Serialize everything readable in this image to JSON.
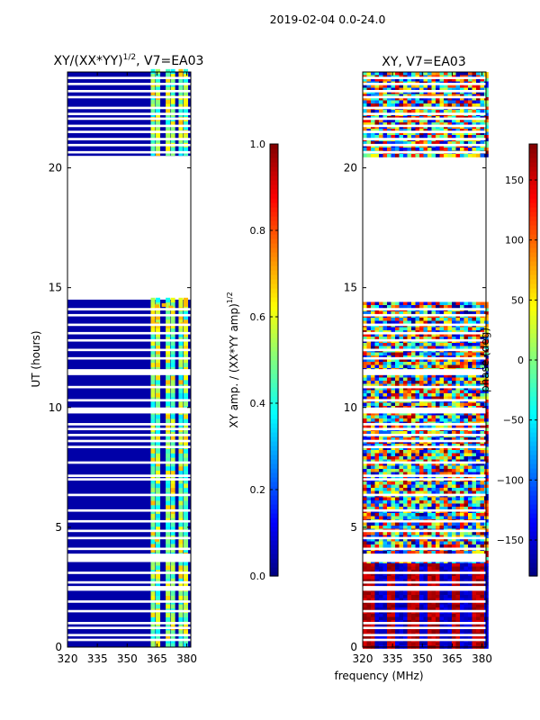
{
  "figure": {
    "suptitle": "2019-02-04 0.0-24.0",
    "common_xlabel": "frequency (MHz)"
  },
  "chart_data": [
    {
      "type": "heatmap",
      "title": "XY/(XX*YY)",
      "title_superscript": "1/2",
      "title_suffix": ", V7=EA03",
      "xlabel": "",
      "ylabel": "UT (hours)",
      "xlim": [
        320,
        382
      ],
      "ylim": [
        0,
        24
      ],
      "xticks": [
        320,
        335,
        350,
        365,
        380
      ],
      "yticks": [
        0,
        5,
        10,
        15,
        20
      ],
      "data_gap_hours": [
        14.5,
        20.5
      ],
      "bright_channels_mhz": [
        363,
        365.5,
        370.5,
        373,
        377,
        379.5
      ],
      "colorbar": {
        "label": "XY amp. / (XX*YY amp)",
        "label_superscript": "1/2",
        "range": [
          0.0,
          1.0
        ],
        "ticks": [
          "0.0",
          "0.2",
          "0.4",
          "0.6",
          "0.8",
          "1.0"
        ],
        "colormap": "jet"
      }
    },
    {
      "type": "heatmap",
      "title": "XY, V7=EA03",
      "xlabel": "",
      "ylabel": "",
      "xlim": [
        320,
        382
      ],
      "ylim": [
        0,
        24
      ],
      "xticks": [
        320,
        335,
        350,
        365,
        380
      ],
      "yticks": [
        0,
        5,
        10,
        15,
        20
      ],
      "data_gap_hours": [
        14.5,
        20.5
      ],
      "colorbar": {
        "label": "phase (deg)",
        "range": [
          -180,
          180
        ],
        "ticks": [
          "−150",
          "−100",
          "−50",
          "0",
          "50",
          "100",
          "150"
        ],
        "tick_values": [
          -150,
          -100,
          -50,
          0,
          50,
          100,
          150
        ],
        "colormap": "jet"
      }
    }
  ]
}
